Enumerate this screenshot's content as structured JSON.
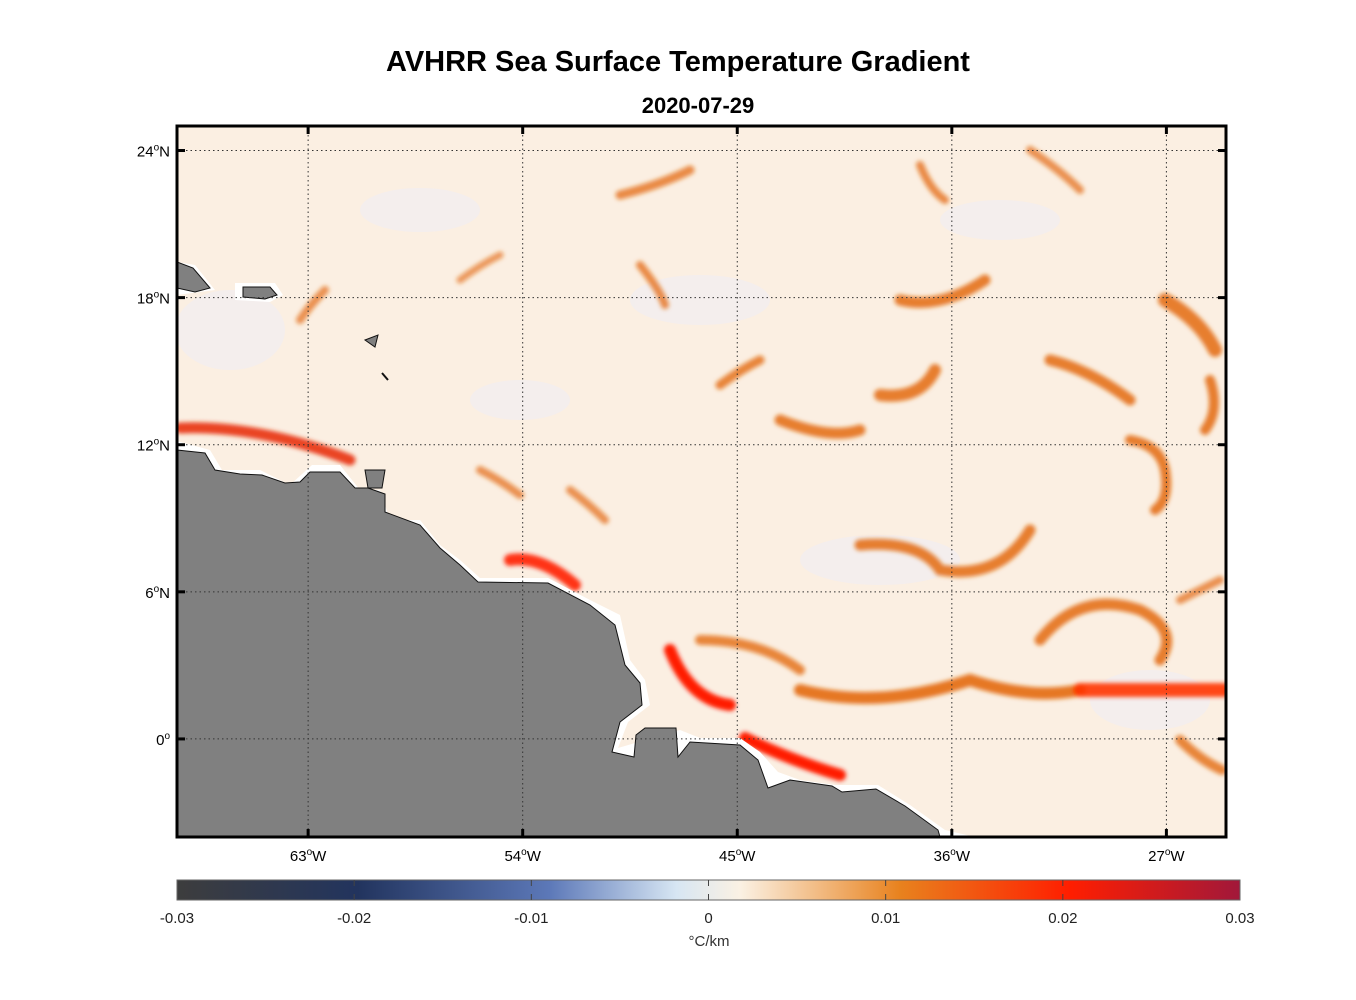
{
  "title": "AVHRR Sea Surface Temperature Gradient",
  "date": "2020-07-29",
  "map": {
    "lon_range_deg": [
      -68.5,
      -24.5
    ],
    "lat_range_deg": [
      -4.0,
      25.0
    ],
    "lat_ticks": [
      {
        "value": 24,
        "label": "24",
        "hemi": "N"
      },
      {
        "value": 18,
        "label": "18",
        "hemi": "N"
      },
      {
        "value": 12,
        "label": "12",
        "hemi": "N"
      },
      {
        "value": 6,
        "label": "6",
        "hemi": "N"
      },
      {
        "value": 0,
        "label": "0",
        "hemi": ""
      }
    ],
    "lon_ticks": [
      {
        "value": -63,
        "label": "63",
        "hemi": "W"
      },
      {
        "value": -54,
        "label": "54",
        "hemi": "W"
      },
      {
        "value": -45,
        "label": "45",
        "hemi": "W"
      },
      {
        "value": -36,
        "label": "36",
        "hemi": "W"
      },
      {
        "value": -27,
        "label": "27",
        "hemi": "W"
      }
    ],
    "degree_symbol": "o",
    "land_color": "#808080",
    "ocean_base_color": "#fbefe2",
    "fronts_color_strong": "#e8320e",
    "fronts_color_medium": "#e36a10",
    "grid": "dotted"
  },
  "colorbar": {
    "ticks": [
      "-0.03",
      "-0.02",
      "-0.01",
      "0",
      "0.01",
      "0.02",
      "0.03"
    ],
    "units": "°C/km",
    "stops": [
      "#3d3d3d",
      "#22345e",
      "#5c78b8",
      "#d7e6f3",
      "#fbf1e3",
      "#e8821e",
      "#ff1e00",
      "#a1183a"
    ]
  }
}
